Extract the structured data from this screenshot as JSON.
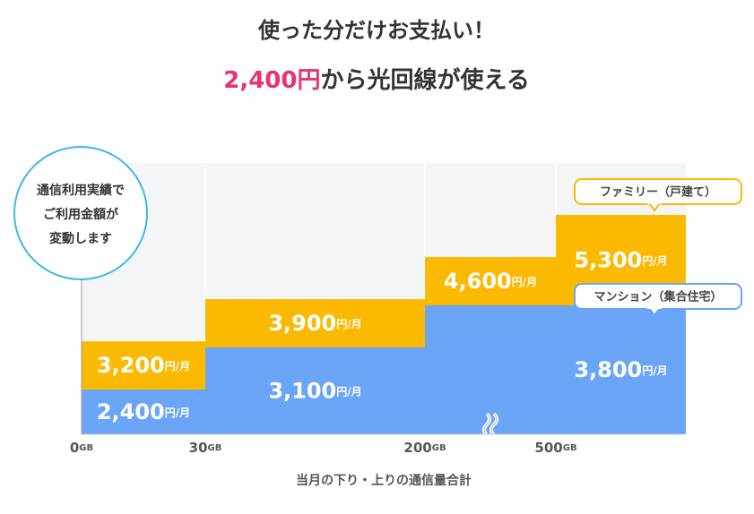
{
  "chart_data": {
    "type": "step",
    "title": "使った分だけお支払い！",
    "subtitle_lead": "2,400円",
    "subtitle": "から光回線が使える",
    "annotation": [
      "通信利用実績で",
      "ご利用金額が",
      "変動します"
    ],
    "xticks": [
      0,
      30,
      200,
      500
    ],
    "x_unit": "GB",
    "value_unit": "円/月",
    "xlabel": "当月の下り・上りの通信量合計",
    "series": [
      {
        "name": "ファミリー（戸建て）",
        "color": "#fbb900",
        "x": [
          0,
          30,
          200,
          500
        ],
        "values": [
          3200,
          3900,
          4600,
          5300
        ],
        "value_labels": [
          "3,200",
          "3,900",
          "4,600",
          "5,300"
        ]
      },
      {
        "name": "マンション（集合住宅）",
        "color": "#6aa5f8",
        "x": [
          0,
          30,
          200
        ],
        "values": [
          2400,
          3100,
          3800
        ],
        "value_labels": [
          "2,400",
          "3,100",
          "3,800"
        ]
      }
    ]
  }
}
